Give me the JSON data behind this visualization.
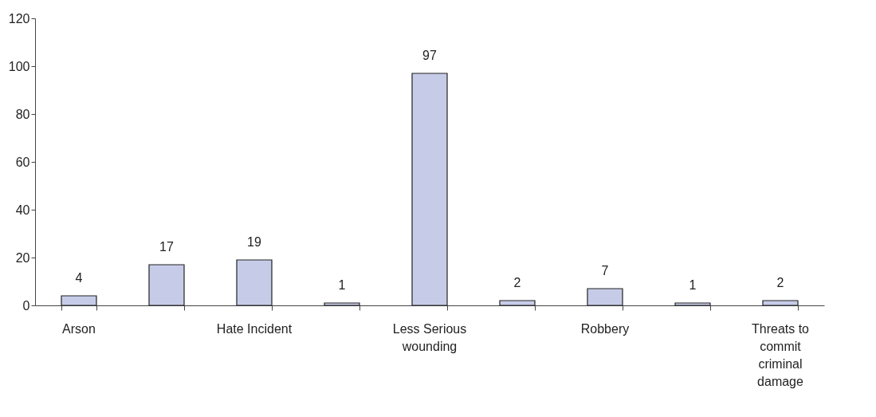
{
  "chart_data": {
    "type": "bar",
    "categories": [
      "Arson",
      null,
      "Hate Incident",
      null,
      "Less Serious wounding",
      null,
      "Robbery",
      null,
      "Threats to commit criminal damage"
    ],
    "values": [
      4,
      17,
      19,
      1,
      97,
      2,
      7,
      1,
      2
    ],
    "color": "#c6cce8",
    "ylim": [
      0,
      120
    ],
    "yticks": [
      0,
      20,
      40,
      60,
      80,
      100,
      120
    ],
    "data_labels": true,
    "grid": false
  }
}
